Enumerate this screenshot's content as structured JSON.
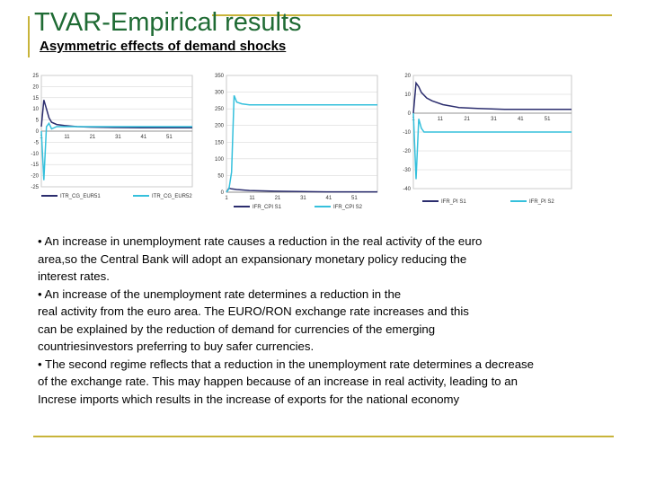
{
  "slide": {
    "title": "TVAR-Empirical results",
    "subtitle": "Asymmetric effects of demand shocks"
  },
  "colors": {
    "accent_rule": "#c8b43a",
    "title_color": "#1f6b34",
    "series_regime1": "#2b2d6e",
    "series_regime2": "#35c0dc",
    "grid": "#d0d0d0"
  },
  "chart_data": [
    {
      "type": "line",
      "title": "",
      "x_ticks": [
        "1",
        "11",
        "21",
        "31",
        "41",
        "51"
      ],
      "y_ticks": [
        "25",
        "20",
        "15",
        "10",
        "5",
        "0",
        "-5",
        "-10",
        "-15",
        "-20",
        "-25"
      ],
      "ylim": [
        -25,
        25
      ],
      "xlim": [
        1,
        60
      ],
      "grid": true,
      "legend_position": "bottom",
      "series": [
        {
          "name": "ITR_CG_EUR51",
          "x": [
            1,
            2,
            3,
            4,
            5,
            7,
            10,
            15,
            20,
            30,
            40,
            50,
            60
          ],
          "y": [
            2,
            14,
            10,
            6,
            4,
            3,
            2.5,
            2,
            1.8,
            1.6,
            1.5,
            1.5,
            1.5
          ]
        },
        {
          "name": "ITR_CG_EUR52",
          "x": [
            1,
            2,
            3,
            4,
            5,
            7,
            10,
            20,
            40,
            60
          ],
          "y": [
            0,
            -22,
            2,
            3.5,
            1,
            2,
            2,
            2,
            2,
            2
          ]
        }
      ]
    },
    {
      "type": "line",
      "title": "",
      "x_ticks": [
        "1",
        "11",
        "21",
        "31",
        "41",
        "51"
      ],
      "y_ticks": [
        "350",
        "300",
        "250",
        "200",
        "150",
        "100",
        "50",
        "0"
      ],
      "ylim": [
        0,
        350
      ],
      "xlim": [
        1,
        60
      ],
      "grid": true,
      "legend_position": "bottom",
      "series": [
        {
          "name": "IFR_CPI S1",
          "x": [
            1,
            2,
            3,
            5,
            10,
            20,
            30,
            40,
            50,
            60
          ],
          "y": [
            0,
            12,
            10,
            8,
            5,
            3,
            2,
            1,
            1,
            1
          ]
        },
        {
          "name": "IFR_CPI S2",
          "x": [
            1,
            2,
            3,
            4,
            5,
            7,
            10,
            20,
            40,
            60
          ],
          "y": [
            0,
            10,
            60,
            290,
            270,
            265,
            262,
            262,
            262,
            262
          ]
        }
      ]
    },
    {
      "type": "line",
      "title": "",
      "x_ticks": [
        "1",
        "11",
        "21",
        "31",
        "41",
        "51"
      ],
      "y_ticks": [
        "20",
        "10",
        "0",
        "-10",
        "-20",
        "-30",
        "-40"
      ],
      "ylim": [
        -40,
        20
      ],
      "xlim": [
        1,
        60
      ],
      "grid": true,
      "legend_position": "bottom",
      "series": [
        {
          "name": "IFR_PI S1",
          "x": [
            1,
            2,
            3,
            4,
            6,
            8,
            12,
            18,
            25,
            35,
            45,
            55,
            60
          ],
          "y": [
            0,
            16,
            14,
            11,
            8,
            6.5,
            4.5,
            3,
            2.5,
            2,
            2,
            2,
            2
          ]
        },
        {
          "name": "IFR_PI S2",
          "x": [
            1,
            2,
            3,
            4,
            5,
            7,
            10,
            20,
            40,
            60
          ],
          "y": [
            0,
            -35,
            -3,
            -8,
            -10,
            -10,
            -10,
            -10,
            -10,
            -10
          ]
        }
      ]
    }
  ],
  "body": {
    "lines": [
      "• An increase in unemployment rate causes a reduction in the real activity of the euro",
      "area,so the Central Bank will adopt an expansionary monetary policy reducing the",
      "interest rates.",
      "• An increase of the unemployment rate determines a reduction in the",
      "real activity from the euro area. The EURO/RON exchange rate increases and this",
      " can be explained by the reduction of demand for currencies of the emerging",
      "countriesinvestors preferring to buy safer currencies.",
      "• The second regime reflects that a reduction in the unemployment rate determines a decrease",
      "of the exchange rate. This may happen because of an increase in real activity, leading to an",
      "Increse imports which results in the increase of exports for the national economy"
    ]
  }
}
